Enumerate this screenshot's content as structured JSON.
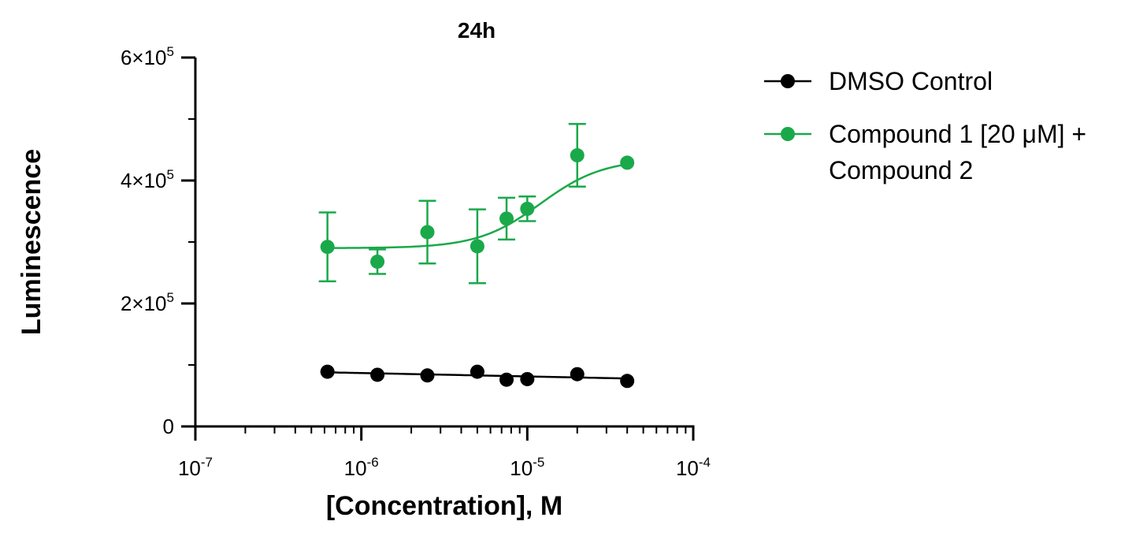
{
  "chart_data": {
    "type": "scatter",
    "title": "24h",
    "xlabel": "[Concentration], M",
    "ylabel": "Luminescence",
    "x_scale": "log",
    "xlim": [
      1e-07,
      0.0001
    ],
    "ylim": [
      0,
      600000
    ],
    "x_ticks": [
      {
        "value": 1e-07,
        "base": "10",
        "exp": "-7"
      },
      {
        "value": 1e-06,
        "base": "10",
        "exp": "-6"
      },
      {
        "value": 1e-05,
        "base": "10",
        "exp": "-5"
      },
      {
        "value": 0.0001,
        "base": "10",
        "exp": "-4"
      }
    ],
    "y_ticks": [
      {
        "value": 0,
        "base": "0",
        "exp": ""
      },
      {
        "value": 200000,
        "base": "2×10",
        "exp": "5"
      },
      {
        "value": 400000,
        "base": "4×10",
        "exp": "5"
      },
      {
        "value": 600000,
        "base": "6×10",
        "exp": "5"
      }
    ],
    "grid": false,
    "legend_position": "right",
    "series": [
      {
        "name": "DMSO Control",
        "color": "#000000",
        "x": [
          6.25e-07,
          1.25e-06,
          2.5e-06,
          5e-06,
          7.5e-06,
          1e-05,
          2e-05,
          4e-05
        ],
        "y": [
          89000,
          84000,
          83000,
          89000,
          76000,
          77000,
          85000,
          74000
        ],
        "error": [
          0,
          0,
          0,
          0,
          0,
          0,
          0,
          0
        ],
        "fit": {
          "type": "linear",
          "y_start": 88000,
          "y_end": 78000
        }
      },
      {
        "name": "Compound 1 [20 μM] + Compound 2",
        "name_lines": [
          "Compound 1 [20 μM] +",
          "Compound 2"
        ],
        "color": "#1aa94a",
        "x": [
          6.25e-07,
          1.25e-06,
          2.5e-06,
          5e-06,
          7.5e-06,
          1e-05,
          2e-05,
          4e-05
        ],
        "y": [
          292000,
          268000,
          316000,
          293000,
          338000,
          354000,
          441000,
          429000
        ],
        "error": [
          56000,
          20000,
          51000,
          60000,
          34000,
          20000,
          51000,
          0
        ],
        "fit": {
          "type": "sigmoid",
          "bottom": 290000,
          "top": 435000,
          "log_ec50": -4.92,
          "hill": 2.3
        }
      }
    ]
  }
}
